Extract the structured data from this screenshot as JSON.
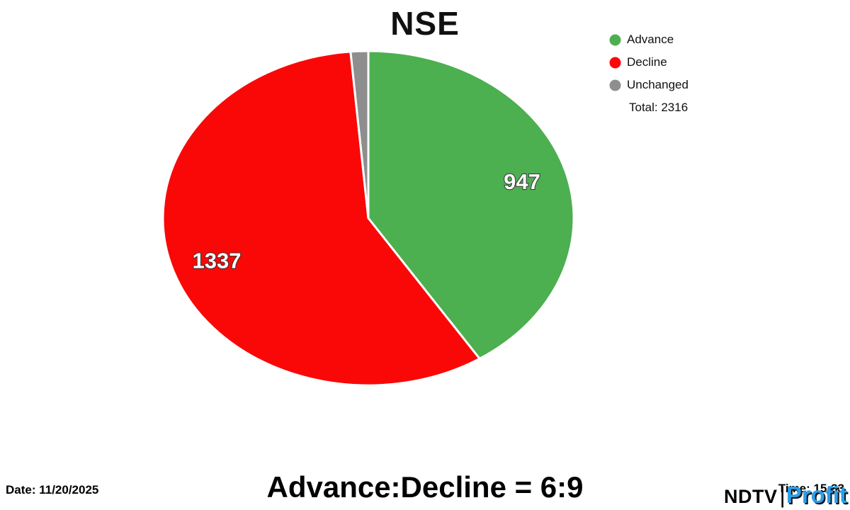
{
  "chart_data": {
    "type": "pie",
    "title": "NSE",
    "labels": [
      "Advance",
      "Decline",
      "Unchanged"
    ],
    "values": [
      947,
      1337,
      32
    ],
    "colors": [
      "#4caf50",
      "#fa0808",
      "#8e8e8e"
    ],
    "total": 2316,
    "legend_position": "top-right",
    "show_value_labels": true,
    "value_label_color": "#ffffff",
    "start_angle_deg": 0,
    "direction": "clockwise"
  },
  "legend": {
    "total_label": "Total: 2316"
  },
  "footer": {
    "ratio_text": "Advance:Decline = 6:9",
    "date_label": "Date: 11/20/2025",
    "time_label": "Time: 15:33"
  },
  "brand": {
    "ndtv": "NDTV",
    "separator": "|",
    "profit": "Profit"
  }
}
